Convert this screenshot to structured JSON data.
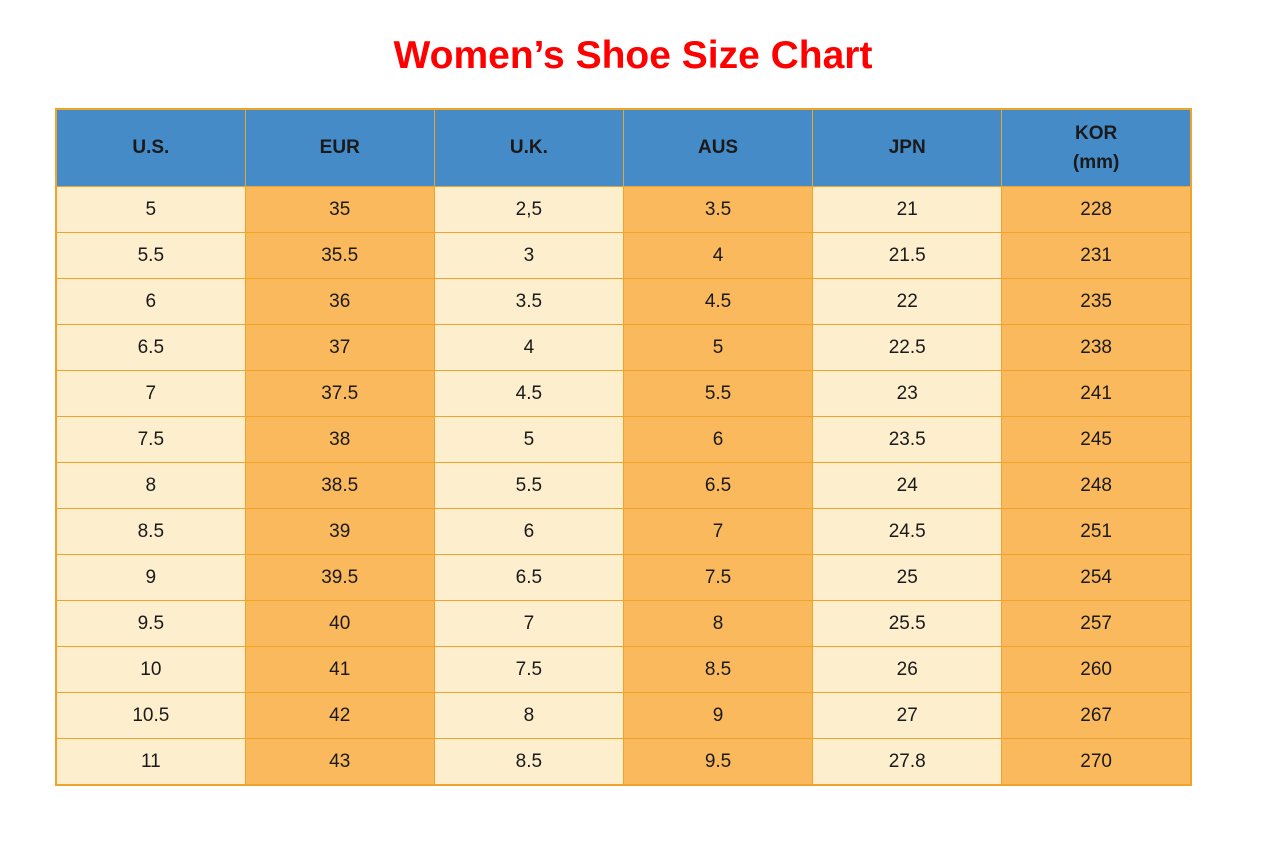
{
  "page": {
    "title": "Women’s Shoe Size Chart"
  },
  "colors": {
    "title_red": "#ff0000",
    "header_blue": "#458bc8",
    "col_cream": "#fdeecd",
    "col_orange": "#fbb95e",
    "border_orange": "#efa32a"
  },
  "chart_data": {
    "type": "table",
    "title": "Women’s Shoe Size Chart",
    "columns": [
      "U.S.",
      "EUR",
      "U.K.",
      "AUS",
      "JPN",
      "KOR (mm)"
    ],
    "header_lines": [
      [
        "U.S."
      ],
      [
        "EUR"
      ],
      [
        "U.K."
      ],
      [
        "AUS"
      ],
      [
        "JPN"
      ],
      [
        "KOR",
        "(mm)"
      ]
    ],
    "rows": [
      [
        "5",
        "35",
        "2,5",
        "3.5",
        "21",
        "228"
      ],
      [
        "5.5",
        "35.5",
        "3",
        "4",
        "21.5",
        "231"
      ],
      [
        "6",
        "36",
        "3.5",
        "4.5",
        "22",
        "235"
      ],
      [
        "6.5",
        "37",
        "4",
        "5",
        "22.5",
        "238"
      ],
      [
        "7",
        "37.5",
        "4.5",
        "5.5",
        "23",
        "241"
      ],
      [
        "7.5",
        "38",
        "5",
        "6",
        "23.5",
        "245"
      ],
      [
        "8",
        "38.5",
        "5.5",
        "6.5",
        "24",
        "248"
      ],
      [
        "8.5",
        "39",
        "6",
        "7",
        "24.5",
        "251"
      ],
      [
        "9",
        "39.5",
        "6.5",
        "7.5",
        "25",
        "254"
      ],
      [
        "9.5",
        "40",
        "7",
        "8",
        "25.5",
        "257"
      ],
      [
        "10",
        "41",
        "7.5",
        "8.5",
        "26",
        "260"
      ],
      [
        "10.5",
        "42",
        "8",
        "9",
        "27",
        "267"
      ],
      [
        "11",
        "43",
        "8.5",
        "9.5",
        "27.8",
        "270"
      ]
    ]
  }
}
